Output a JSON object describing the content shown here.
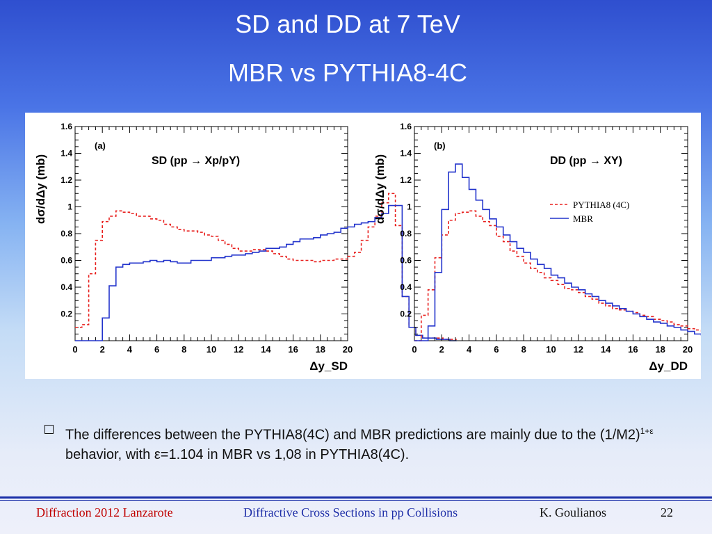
{
  "slide": {
    "title_line1": "SD and DD at 7 TeV",
    "title_line2": "MBR vs PYTHIA8-4C"
  },
  "bullet": {
    "part1": "The differences between the PYTHIA8(4C) and MBR predictions are mainly due to the (1/M2)",
    "superscript": "1+ε",
    "part2": " behavior, with ε=1.104 in MBR vs 1,08 in PYTHIA8(4C)."
  },
  "footer": {
    "left": "Diffraction 2012 Lanzarote",
    "center": "Diffractive Cross Sections in pp Collisions",
    "author": "K. Goulianos",
    "page": "22"
  },
  "colors": {
    "pythia": "#e8201e",
    "mbr": "#2233cc",
    "footer_left": "#c00000",
    "footer_center": "#1f2fa8"
  },
  "chart_data": [
    {
      "type": "line",
      "panel": "(a)",
      "title": "SD (pp → Xp/pY)",
      "ylabel": "dσ/dΔy (mb)",
      "xlabel": "Δy_SD",
      "xlim": [
        0,
        20
      ],
      "ylim": [
        0,
        1.6
      ],
      "xticks": [
        "0",
        "2",
        "4",
        "6",
        "8",
        "10",
        "12",
        "14",
        "16",
        "18",
        "20"
      ],
      "yticks": [
        "0.2",
        "0.4",
        "0.6",
        "0.8",
        "1",
        "1.2",
        "1.4",
        "1.6"
      ],
      "bin_width": 0.5,
      "series": [
        {
          "name": "PYTHIA8 (4C)",
          "style": "dashed",
          "values": [
            0.1,
            0.12,
            0.5,
            0.75,
            0.89,
            0.93,
            0.97,
            0.96,
            0.95,
            0.93,
            0.93,
            0.91,
            0.9,
            0.87,
            0.85,
            0.83,
            0.82,
            0.82,
            0.81,
            0.79,
            0.78,
            0.75,
            0.72,
            0.69,
            0.67,
            0.67,
            0.68,
            0.68,
            0.67,
            0.65,
            0.63,
            0.61,
            0.6,
            0.6,
            0.6,
            0.59,
            0.6,
            0.6,
            0.61,
            0.61,
            0.63,
            0.66,
            0.75,
            0.85,
            0.93,
            1.03,
            1.1,
            0.86,
            0.33,
            0.1,
            0.04,
            0.02,
            0.02,
            0.02,
            0.01,
            0.01
          ]
        },
        {
          "name": "MBR",
          "style": "solid",
          "values": [
            0.0,
            0.0,
            0.0,
            0.0,
            0.17,
            0.41,
            0.55,
            0.57,
            0.58,
            0.58,
            0.59,
            0.6,
            0.59,
            0.6,
            0.59,
            0.58,
            0.58,
            0.6,
            0.6,
            0.6,
            0.62,
            0.62,
            0.63,
            0.64,
            0.64,
            0.65,
            0.66,
            0.67,
            0.69,
            0.69,
            0.7,
            0.72,
            0.74,
            0.76,
            0.76,
            0.77,
            0.79,
            0.8,
            0.81,
            0.84,
            0.85,
            0.87,
            0.88,
            0.89,
            0.92,
            0.95,
            1.01,
            1.01,
            0.33,
            0.1,
            0.04,
            0.02,
            0.02,
            0.01,
            0.01,
            0.0
          ]
        }
      ]
    },
    {
      "type": "line",
      "panel": "(b)",
      "title": "DD (pp → XY)",
      "ylabel": "dσ/dΔy (mb)",
      "xlabel": "Δy_DD",
      "xlim": [
        0,
        20
      ],
      "ylim": [
        0,
        1.6
      ],
      "xticks": [
        "0",
        "2",
        "4",
        "6",
        "8",
        "10",
        "12",
        "14",
        "16",
        "18",
        "20"
      ],
      "yticks": [
        "0.2",
        "0.4",
        "0.6",
        "0.8",
        "1",
        "1.2",
        "1.4",
        "1.6"
      ],
      "bin_width": 0.5,
      "legend": [
        "PYTHIA8 (4C)",
        "MBR"
      ],
      "series": [
        {
          "name": "PYTHIA8 (4C)",
          "style": "dashed",
          "values": [
            0.0,
            0.19,
            0.38,
            0.62,
            0.79,
            0.9,
            0.95,
            0.96,
            0.97,
            0.93,
            0.89,
            0.86,
            0.78,
            0.74,
            0.67,
            0.63,
            0.58,
            0.54,
            0.51,
            0.47,
            0.45,
            0.42,
            0.39,
            0.38,
            0.36,
            0.33,
            0.31,
            0.28,
            0.26,
            0.24,
            0.23,
            0.22,
            0.21,
            0.19,
            0.18,
            0.16,
            0.15,
            0.14,
            0.12,
            0.11,
            0.09,
            0.08,
            0.07,
            0.05,
            0.04,
            0.03,
            0.02,
            0.02,
            0.01,
            0.01,
            0.01,
            0.0,
            0.0,
            0.0,
            0.0,
            0.0
          ]
        },
        {
          "name": "MBR",
          "style": "solid",
          "values": [
            0.0,
            0.0,
            0.11,
            0.51,
            0.98,
            1.26,
            1.32,
            1.22,
            1.13,
            1.05,
            0.98,
            0.91,
            0.85,
            0.79,
            0.74,
            0.69,
            0.66,
            0.61,
            0.57,
            0.54,
            0.49,
            0.47,
            0.43,
            0.4,
            0.38,
            0.35,
            0.33,
            0.3,
            0.28,
            0.26,
            0.24,
            0.22,
            0.2,
            0.18,
            0.16,
            0.14,
            0.13,
            0.11,
            0.1,
            0.08,
            0.07,
            0.05,
            0.04,
            0.03,
            0.02,
            0.02,
            0.01,
            0.01,
            0.0,
            0.0,
            0.0,
            0.0,
            0.0,
            0.0,
            0.0,
            0.0
          ]
        }
      ]
    }
  ]
}
